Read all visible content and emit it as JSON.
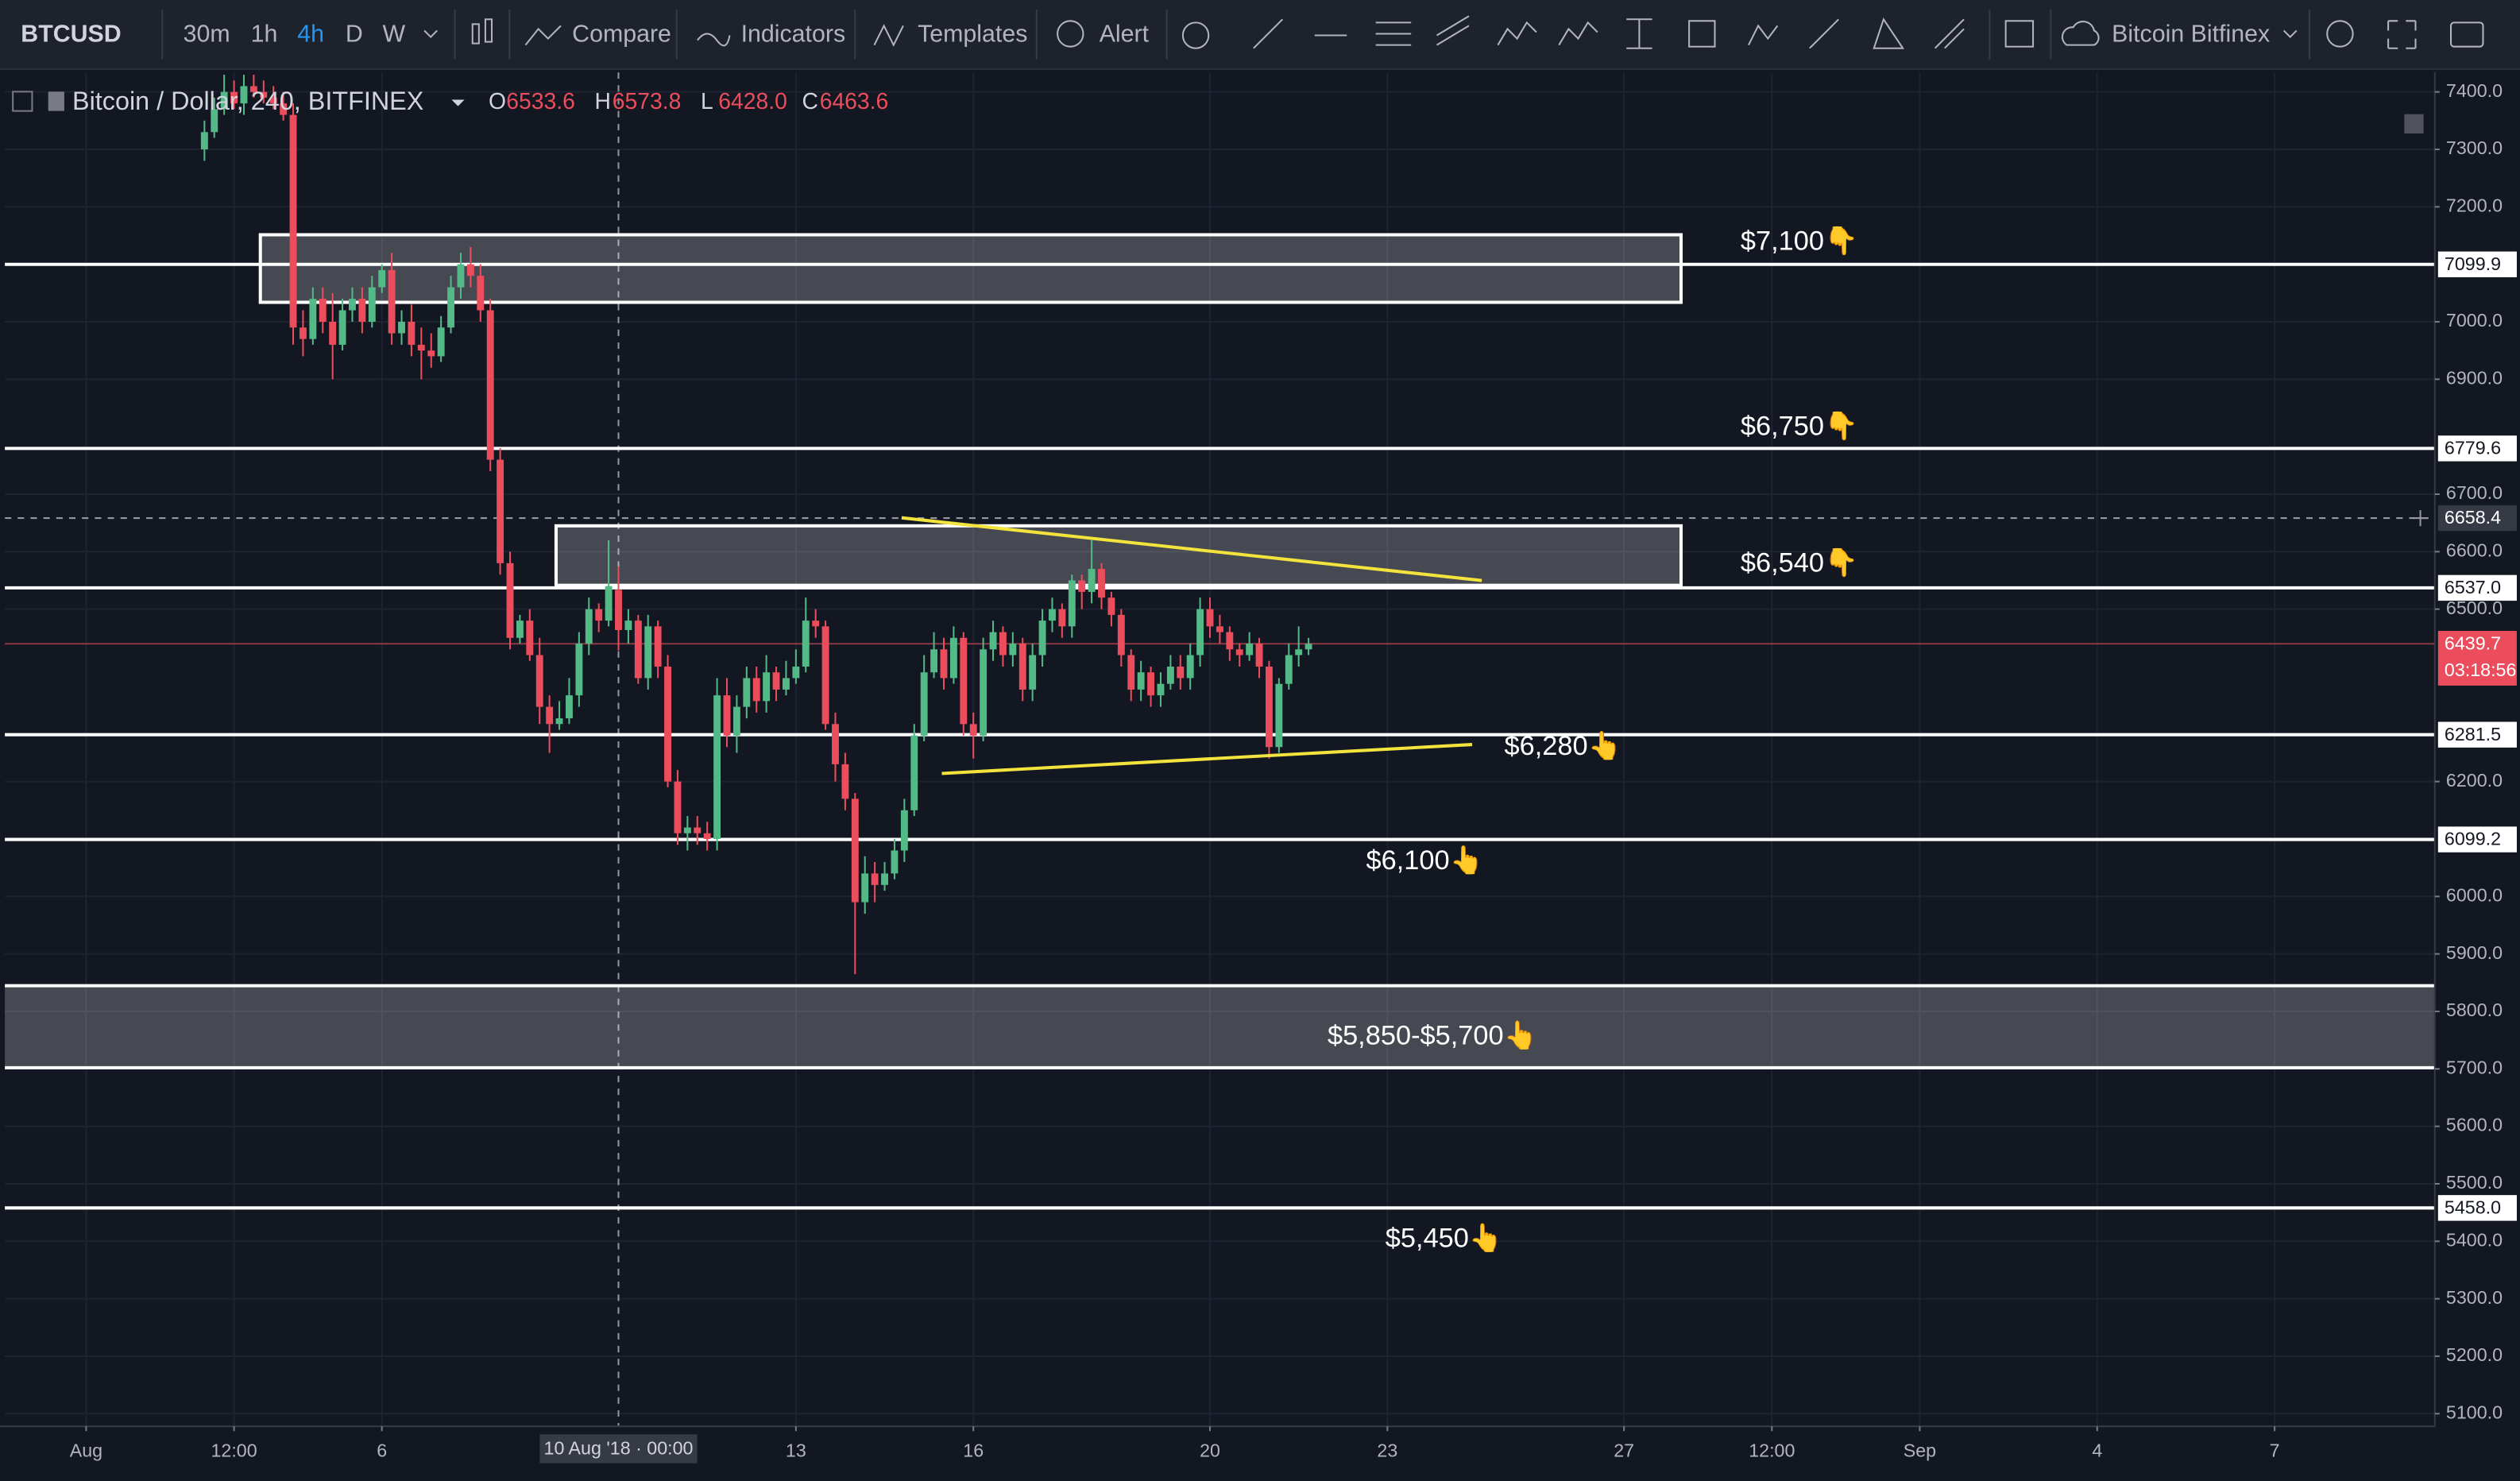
{
  "toolbar": {
    "symbol": "BTCUSD",
    "intervals": [
      "30m",
      "1h",
      "4h",
      "D",
      "W"
    ],
    "compare": "Compare",
    "indicators": "Indicators",
    "templates": "Templates",
    "alert": "Alert",
    "exchange": "Bitcoin Bitfinex"
  },
  "legend": {
    "title": "Bitcoin / Dollar, 240, BITFINEX",
    "open_key": "O",
    "open": "6533.6",
    "high_key": "H",
    "high": "6573.8",
    "low_key": "L",
    "low": "6428.0",
    "close_key": "C",
    "close": "6463.6"
  },
  "chart_data": {
    "type": "candlestick",
    "x": [
      "2018-08-03T00:00",
      "2018-08-03T04:00",
      "2018-08-03T08:00",
      "2018-08-03T12:00",
      "2018-08-03T16:00",
      "2018-08-03T20:00",
      "2018-08-04T00:00",
      "2018-08-04T04:00",
      "2018-08-04T08:00",
      "2018-08-04T12:00",
      "2018-08-04T16:00",
      "2018-08-04T20:00",
      "2018-08-05T00:00",
      "2018-08-05T04:00",
      "2018-08-05T08:00",
      "2018-08-05T12:00",
      "2018-08-05T16:00",
      "2018-08-05T20:00",
      "2018-08-06T00:00",
      "2018-08-06T04:00",
      "2018-08-06T08:00",
      "2018-08-06T12:00",
      "2018-08-06T16:00",
      "2018-08-06T20:00",
      "2018-08-07T00:00",
      "2018-08-07T04:00",
      "2018-08-07T08:00",
      "2018-08-07T12:00",
      "2018-08-07T16:00",
      "2018-08-07T20:00",
      "2018-08-08T00:00",
      "2018-08-08T04:00",
      "2018-08-08T08:00",
      "2018-08-08T12:00",
      "2018-08-08T16:00",
      "2018-08-08T20:00",
      "2018-08-09T00:00",
      "2018-08-09T04:00",
      "2018-08-09T08:00",
      "2018-08-09T12:00",
      "2018-08-09T16:00",
      "2018-08-09T20:00",
      "2018-08-10T00:00",
      "2018-08-10T04:00",
      "2018-08-10T08:00",
      "2018-08-10T12:00",
      "2018-08-10T16:00",
      "2018-08-10T20:00",
      "2018-08-11T00:00",
      "2018-08-11T04:00",
      "2018-08-11T08:00",
      "2018-08-11T12:00",
      "2018-08-11T16:00",
      "2018-08-11T20:00",
      "2018-08-12T00:00",
      "2018-08-12T04:00",
      "2018-08-12T08:00",
      "2018-08-12T12:00",
      "2018-08-12T16:00",
      "2018-08-12T20:00",
      "2018-08-13T00:00",
      "2018-08-13T04:00",
      "2018-08-13T08:00",
      "2018-08-13T12:00",
      "2018-08-13T16:00",
      "2018-08-13T20:00",
      "2018-08-14T00:00",
      "2018-08-14T04:00",
      "2018-08-14T08:00",
      "2018-08-14T12:00",
      "2018-08-14T16:00",
      "2018-08-14T20:00",
      "2018-08-15T00:00",
      "2018-08-15T04:00",
      "2018-08-15T08:00",
      "2018-08-15T12:00",
      "2018-08-15T16:00",
      "2018-08-15T20:00",
      "2018-08-16T00:00",
      "2018-08-16T04:00",
      "2018-08-16T08:00",
      "2018-08-16T12:00",
      "2018-08-16T16:00",
      "2018-08-16T20:00",
      "2018-08-17T00:00",
      "2018-08-17T04:00",
      "2018-08-17T08:00",
      "2018-08-17T12:00",
      "2018-08-17T16:00",
      "2018-08-17T20:00",
      "2018-08-18T00:00",
      "2018-08-18T04:00",
      "2018-08-18T08:00",
      "2018-08-18T12:00",
      "2018-08-18T16:00",
      "2018-08-18T20:00",
      "2018-08-19T00:00",
      "2018-08-19T04:00",
      "2018-08-19T08:00",
      "2018-08-19T12:00",
      "2018-08-19T16:00",
      "2018-08-19T20:00",
      "2018-08-20T00:00",
      "2018-08-20T04:00",
      "2018-08-20T08:00",
      "2018-08-20T12:00",
      "2018-08-20T16:00",
      "2018-08-20T20:00",
      "2018-08-21T00:00",
      "2018-08-21T04:00",
      "2018-08-21T08:00",
      "2018-08-21T12:00",
      "2018-08-21T16:00"
    ],
    "open": [
      7300,
      7330,
      7370,
      7400,
      7380,
      7410,
      7400,
      7390,
      7380,
      7360,
      6990,
      6970,
      7040,
      7000,
      6960,
      7020,
      7040,
      7000,
      7060,
      7090,
      6980,
      7000,
      6960,
      6950,
      6940,
      6990,
      7060,
      7100,
      7080,
      7020,
      6760,
      6580,
      6450,
      6480,
      6420,
      6330,
      6300,
      6310,
      6350,
      6440,
      6500,
      6480,
      6533.6,
      6463.6,
      6480,
      6380,
      6470,
      6400,
      6200,
      6110,
      6120,
      6110,
      6100,
      6350,
      6280,
      6330,
      6380,
      6340,
      6390,
      6360,
      6380,
      6400,
      6480,
      6470,
      6300,
      6230,
      6170,
      5990,
      6040,
      6020,
      6040,
      6080,
      6150,
      6280,
      6390,
      6430,
      6380,
      6450,
      6300,
      6280,
      6430,
      6460,
      6420,
      6440,
      6360,
      6420,
      6480,
      6500,
      6470,
      6550,
      6530,
      6570,
      6520,
      6490,
      6420,
      6360,
      6390,
      6350,
      6370,
      6400,
      6380,
      6420,
      6500,
      6470,
      6460,
      6430,
      6420,
      6440,
      6400,
      6260,
      6370,
      6420,
      6430
    ],
    "high": [
      7350,
      7390,
      7430,
      7420,
      7430,
      7430,
      7420,
      7410,
      7400,
      7380,
      7020,
      7060,
      7060,
      7050,
      7040,
      7060,
      7060,
      7080,
      7100,
      7120,
      7020,
      7030,
      6990,
      6980,
      7010,
      7080,
      7120,
      7130,
      7100,
      7040,
      6780,
      6600,
      6490,
      6500,
      6450,
      6350,
      6340,
      6380,
      6460,
      6520,
      6510,
      6620,
      6573.8,
      6500,
      6490,
      6490,
      6480,
      6420,
      6220,
      6140,
      6140,
      6130,
      6380,
      6380,
      6350,
      6400,
      6400,
      6420,
      6400,
      6410,
      6430,
      6520,
      6500,
      6480,
      6320,
      6250,
      6180,
      6070,
      6060,
      6060,
      6100,
      6170,
      6300,
      6420,
      6460,
      6450,
      6470,
      6460,
      6320,
      6450,
      6480,
      6470,
      6460,
      6450,
      6440,
      6500,
      6520,
      6510,
      6560,
      6560,
      6620,
      6580,
      6530,
      6500,
      6430,
      6410,
      6400,
      6390,
      6420,
      6420,
      6440,
      6520,
      6520,
      6490,
      6470,
      6440,
      6460,
      6450,
      6410,
      6380,
      6440,
      6470,
      6450
    ],
    "low": [
      7280,
      7320,
      7360,
      7370,
      7360,
      7390,
      7380,
      7370,
      7350,
      6960,
      6940,
      6960,
      6980,
      6900,
      6950,
      7000,
      6980,
      6990,
      7050,
      6960,
      6960,
      6940,
      6900,
      6920,
      6930,
      6980,
      7040,
      7060,
      7000,
      6740,
      6560,
      6430,
      6440,
      6410,
      6300,
      6250,
      6290,
      6300,
      6330,
      6420,
      6460,
      6470,
      6428.0,
      6440,
      6370,
      6360,
      6380,
      6190,
      6090,
      6080,
      6090,
      6080,
      6080,
      6260,
      6250,
      6310,
      6320,
      6320,
      6340,
      6350,
      6370,
      6390,
      6450,
      6290,
      6200,
      6150,
      5865,
      5970,
      5990,
      6010,
      6030,
      6060,
      6140,
      6270,
      6380,
      6360,
      6370,
      6280,
      6240,
      6270,
      6410,
      6400,
      6400,
      6340,
      6340,
      6400,
      6460,
      6450,
      6450,
      6500,
      6510,
      6500,
      6470,
      6400,
      6340,
      6340,
      6330,
      6330,
      6360,
      6360,
      6360,
      6400,
      6450,
      6440,
      6410,
      6400,
      6410,
      6380,
      6240,
      6250,
      6360,
      6400,
      6420
    ],
    "close": [
      7330,
      7370,
      7400,
      7380,
      7410,
      7400,
      7390,
      7380,
      7360,
      6990,
      6970,
      7040,
      7000,
      6960,
      7020,
      7040,
      7000,
      7060,
      7090,
      6980,
      7000,
      6960,
      6950,
      6940,
      6990,
      7060,
      7100,
      7080,
      7020,
      6760,
      6580,
      6450,
      6480,
      6420,
      6330,
      6300,
      6310,
      6350,
      6440,
      6500,
      6480,
      6540,
      6463.6,
      6480,
      6380,
      6470,
      6400,
      6200,
      6110,
      6120,
      6110,
      6100,
      6350,
      6280,
      6330,
      6380,
      6340,
      6390,
      6360,
      6380,
      6400,
      6480,
      6470,
      6300,
      6230,
      6170,
      5990,
      6040,
      6020,
      6040,
      6080,
      6150,
      6280,
      6390,
      6430,
      6380,
      6450,
      6300,
      6280,
      6430,
      6460,
      6420,
      6440,
      6360,
      6420,
      6480,
      6500,
      6470,
      6550,
      6530,
      6570,
      6520,
      6490,
      6420,
      6360,
      6390,
      6350,
      6370,
      6400,
      6380,
      6420,
      6500,
      6470,
      6460,
      6430,
      6420,
      6440,
      6400,
      6260,
      6370,
      6420,
      6430,
      6439.7
    ],
    "up_color": "#53b987",
    "down_color": "#eb4d5c",
    "xlim": [
      "2018-07-30T15:00",
      "2018-09-09T17:00"
    ],
    "ylim": [
      5078,
      7434
    ],
    "grid": true,
    "xticks": [
      {
        "value": "2018-08-01T00:00",
        "label": "Aug"
      },
      {
        "value": "2018-08-03T12:00",
        "label": "12:00"
      },
      {
        "value": "2018-08-06T00:00",
        "label": "6"
      },
      {
        "value": "2018-08-13T00:00",
        "label": "13"
      },
      {
        "value": "2018-08-16T00:00",
        "label": "16"
      },
      {
        "value": "2018-08-20T00:00",
        "label": "20"
      },
      {
        "value": "2018-08-23T00:00",
        "label": "23"
      },
      {
        "value": "2018-08-27T00:00",
        "label": "27"
      },
      {
        "value": "2018-08-29T12:00",
        "label": "12:00"
      },
      {
        "value": "2018-09-01T00:00",
        "label": "Sep"
      },
      {
        "value": "2018-09-04T00:00",
        "label": "4"
      },
      {
        "value": "2018-09-07T00:00",
        "label": "7"
      }
    ],
    "yticks": [
      {
        "value": 7400,
        "label": "7400.0"
      },
      {
        "value": 7300,
        "label": "7300.0"
      },
      {
        "value": 7200,
        "label": "7200.0"
      },
      {
        "value": 7000,
        "label": "7000.0"
      },
      {
        "value": 6900,
        "label": "6900.0"
      },
      {
        "value": 6700,
        "label": "6700.0"
      },
      {
        "value": 6600,
        "label": "6600.0"
      },
      {
        "value": 6500,
        "label": "6500.0"
      },
      {
        "value": 6200,
        "label": "6200.0"
      },
      {
        "value": 6000,
        "label": "6000.0"
      },
      {
        "value": 5900,
        "label": "5900.0"
      },
      {
        "value": 5800,
        "label": "5800.0"
      },
      {
        "value": 5700,
        "label": "5700.0"
      },
      {
        "value": 5600,
        "label": "5600.0"
      },
      {
        "value": 5500,
        "label": "5500.0"
      },
      {
        "value": 5400,
        "label": "5400.0"
      },
      {
        "value": 5300,
        "label": "5300.0"
      },
      {
        "value": 5200,
        "label": "5200.0"
      },
      {
        "value": 5100,
        "label": "5100.0"
      }
    ],
    "levels": [
      7099.9,
      6779.6,
      {
        "value": 6537,
        "label": "6537.0"
      },
      6281.5,
      6099.2,
      {
        "value": 5458,
        "label": "5458.0"
      }
    ],
    "countdown": "03:18:56",
    "crosshair": {
      "x": "2018-08-10T00:00",
      "x_label": "10 Aug '18 · 00:00",
      "y": 6658.4
    },
    "annotations": [
      "$7,100👇",
      "$6,750👇",
      "$6,540👇",
      "$6,280👆",
      "$6,100👆",
      "$5,850-$5,700👆",
      "$5,450👆"
    ]
  }
}
